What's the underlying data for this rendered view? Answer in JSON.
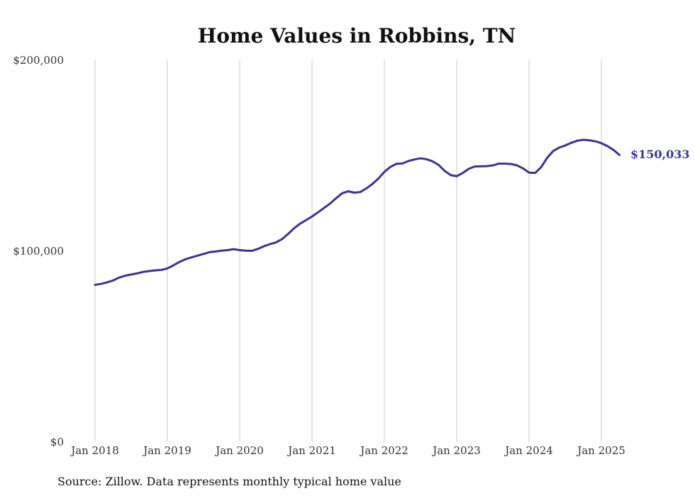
{
  "chart_data": {
    "type": "line",
    "title": "Home Values in Robbins, TN",
    "source": "Source: Zillow. Data represents monthly typical home value",
    "xlabel": "",
    "ylabel": "",
    "ylim": [
      0,
      200000
    ],
    "xlim": [
      "2018-01",
      "2025-04"
    ],
    "y_ticks": [
      {
        "value": 0,
        "label": "$0"
      },
      {
        "value": 100000,
        "label": "$100,000"
      },
      {
        "value": 200000,
        "label": "$200,000"
      }
    ],
    "x_ticks": [
      {
        "value": "2018-01",
        "label": "Jan 2018"
      },
      {
        "value": "2019-01",
        "label": "Jan 2019"
      },
      {
        "value": "2020-01",
        "label": "Jan 2020"
      },
      {
        "value": "2021-01",
        "label": "Jan 2021"
      },
      {
        "value": "2022-01",
        "label": "Jan 2022"
      },
      {
        "value": "2023-01",
        "label": "Jan 2023"
      },
      {
        "value": "2024-01",
        "label": "Jan 2024"
      },
      {
        "value": "2025-01",
        "label": "Jan 2025"
      }
    ],
    "grid": {
      "vertical": true,
      "horizontal": false
    },
    "line_color": "#3a3591",
    "end_label": "$150,033",
    "series": [
      {
        "x": [
          "2018-01",
          "2018-02",
          "2018-03",
          "2018-04",
          "2018-05",
          "2018-06",
          "2018-07",
          "2018-08",
          "2018-09",
          "2018-10",
          "2018-11",
          "2018-12",
          "2019-01",
          "2019-02",
          "2019-03",
          "2019-04",
          "2019-05",
          "2019-06",
          "2019-07",
          "2019-08",
          "2019-09",
          "2019-10",
          "2019-11",
          "2019-12",
          "2020-01",
          "2020-02",
          "2020-03",
          "2020-04",
          "2020-05",
          "2020-06",
          "2020-07",
          "2020-08",
          "2020-09",
          "2020-10",
          "2020-11",
          "2020-12",
          "2021-01",
          "2021-02",
          "2021-03",
          "2021-04",
          "2021-05",
          "2021-06",
          "2021-07",
          "2021-08",
          "2021-09",
          "2021-10",
          "2021-11",
          "2021-12",
          "2022-01",
          "2022-02",
          "2022-03",
          "2022-04",
          "2022-05",
          "2022-06",
          "2022-07",
          "2022-08",
          "2022-09",
          "2022-10",
          "2022-11",
          "2022-12",
          "2023-01",
          "2023-02",
          "2023-03",
          "2023-04",
          "2023-05",
          "2023-06",
          "2023-07",
          "2023-08",
          "2023-09",
          "2023-10",
          "2023-11",
          "2023-12",
          "2024-01",
          "2024-02",
          "2024-03",
          "2024-04",
          "2024-05",
          "2024-06",
          "2024-07",
          "2024-08",
          "2024-09",
          "2024-10",
          "2024-11",
          "2024-12",
          "2025-01",
          "2025-02",
          "2025-03",
          "2025-04"
        ],
        "values": [
          82000,
          82500,
          83300,
          84300,
          85800,
          86800,
          87400,
          88000,
          88800,
          89200,
          89600,
          89800,
          90600,
          92200,
          94000,
          95400,
          96400,
          97300,
          98200,
          99100,
          99500,
          99900,
          100200,
          100700,
          100200,
          99900,
          99800,
          100800,
          102200,
          103300,
          104200,
          105900,
          108600,
          111600,
          114000,
          115900,
          117800,
          120000,
          122300,
          124600,
          127400,
          130000,
          131000,
          130300,
          130600,
          132500,
          134800,
          137700,
          141200,
          143800,
          145400,
          145600,
          146900,
          147700,
          148300,
          147800,
          146700,
          144800,
          141700,
          139500,
          138900,
          140600,
          142800,
          144000,
          144100,
          144200,
          144600,
          145500,
          145500,
          145300,
          144600,
          143000,
          140800,
          140600,
          143600,
          148500,
          152100,
          153900,
          155000,
          156400,
          157500,
          158000,
          157700,
          157200,
          156200,
          154700,
          152700,
          150033
        ]
      }
    ]
  }
}
